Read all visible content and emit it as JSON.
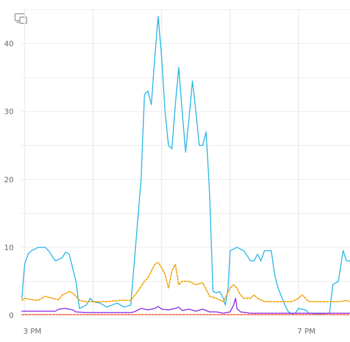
{
  "chart_data": {
    "type": "line",
    "title": "",
    "xlabel": "",
    "ylabel": "",
    "x_tick_labels": [
      {
        "x": 15.0,
        "label": "3 PM"
      },
      {
        "x": 19.0,
        "label": "7 PM"
      }
    ],
    "xlim": [
      14.95,
      19.75
    ],
    "y_ticks": [
      0,
      10,
      20,
      30,
      40
    ],
    "ylim": [
      0,
      45
    ],
    "grid": true,
    "legend": "none",
    "series": [
      {
        "color": "#29b6e6",
        "style": "solid",
        "points": [
          [
            14.96,
            2.5
          ],
          [
            15.0,
            7.5
          ],
          [
            15.05,
            9.0
          ],
          [
            15.1,
            9.5
          ],
          [
            15.2,
            10.0
          ],
          [
            15.3,
            10.0
          ],
          [
            15.35,
            9.5
          ],
          [
            15.45,
            8.0
          ],
          [
            15.55,
            8.5
          ],
          [
            15.6,
            9.3
          ],
          [
            15.65,
            9.0
          ],
          [
            15.75,
            5.0
          ],
          [
            15.8,
            1.0
          ],
          [
            15.9,
            1.5
          ],
          [
            15.96,
            2.5
          ],
          [
            16.0,
            2.0
          ],
          [
            16.1,
            1.8
          ],
          [
            16.2,
            1.2
          ],
          [
            16.35,
            1.8
          ],
          [
            16.45,
            1.2
          ],
          [
            16.55,
            1.5
          ],
          [
            16.7,
            20.0
          ],
          [
            16.75,
            32.5
          ],
          [
            16.8,
            33.0
          ],
          [
            16.85,
            31.0
          ],
          [
            16.9,
            38.0
          ],
          [
            16.95,
            44.0
          ],
          [
            17.0,
            38.0
          ],
          [
            17.05,
            30.0
          ],
          [
            17.1,
            25.0
          ],
          [
            17.15,
            24.5
          ],
          [
            17.2,
            31.0
          ],
          [
            17.25,
            36.5
          ],
          [
            17.3,
            30.0
          ],
          [
            17.35,
            24.0
          ],
          [
            17.4,
            29.0
          ],
          [
            17.45,
            34.5
          ],
          [
            17.5,
            30.0
          ],
          [
            17.55,
            25.0
          ],
          [
            17.6,
            25.0
          ],
          [
            17.65,
            27.0
          ],
          [
            17.7,
            18.0
          ],
          [
            17.75,
            3.5
          ],
          [
            17.8,
            3.3
          ],
          [
            17.85,
            3.5
          ],
          [
            17.9,
            2.5
          ],
          [
            17.93,
            1.5
          ],
          [
            17.97,
            4.0
          ],
          [
            18.0,
            9.5
          ],
          [
            18.1,
            10.0
          ],
          [
            18.2,
            9.5
          ],
          [
            18.3,
            8.0
          ],
          [
            18.35,
            8.0
          ],
          [
            18.4,
            9.0
          ],
          [
            18.45,
            8.0
          ],
          [
            18.5,
            9.5
          ],
          [
            18.6,
            9.5
          ],
          [
            18.65,
            6.0
          ],
          [
            18.7,
            4.0
          ],
          [
            18.8,
            1.5
          ],
          [
            18.85,
            0.5
          ],
          [
            18.9,
            0.2
          ],
          [
            18.95,
            0.3
          ],
          [
            19.0,
            1.0
          ],
          [
            19.1,
            0.8
          ],
          [
            19.15,
            0.3
          ],
          [
            19.3,
            0.2
          ],
          [
            19.45,
            0.3
          ],
          [
            19.5,
            4.5
          ],
          [
            19.58,
            5.0
          ],
          [
            19.65,
            9.5
          ],
          [
            19.7,
            8.0
          ],
          [
            19.75,
            8.0
          ]
        ]
      },
      {
        "color": "#f0a000",
        "style": "dashed",
        "points": [
          [
            14.96,
            2.2
          ],
          [
            15.0,
            2.5
          ],
          [
            15.1,
            2.3
          ],
          [
            15.2,
            2.2
          ],
          [
            15.3,
            2.8
          ],
          [
            15.4,
            2.5
          ],
          [
            15.5,
            2.3
          ],
          [
            15.55,
            3.0
          ],
          [
            15.6,
            3.2
          ],
          [
            15.65,
            3.5
          ],
          [
            15.7,
            3.3
          ],
          [
            15.75,
            2.8
          ],
          [
            15.8,
            2.2
          ],
          [
            15.9,
            2.0
          ],
          [
            16.0,
            2.0
          ],
          [
            16.2,
            2.0
          ],
          [
            16.4,
            2.2
          ],
          [
            16.55,
            2.2
          ],
          [
            16.65,
            3.5
          ],
          [
            16.75,
            5.0
          ],
          [
            16.8,
            5.5
          ],
          [
            16.85,
            6.5
          ],
          [
            16.9,
            7.5
          ],
          [
            16.95,
            7.8
          ],
          [
            17.0,
            7.0
          ],
          [
            17.05,
            6.0
          ],
          [
            17.1,
            4.0
          ],
          [
            17.15,
            6.5
          ],
          [
            17.2,
            7.5
          ],
          [
            17.25,
            4.5
          ],
          [
            17.3,
            5.0
          ],
          [
            17.4,
            5.0
          ],
          [
            17.5,
            4.5
          ],
          [
            17.6,
            4.8
          ],
          [
            17.7,
            2.8
          ],
          [
            17.8,
            2.5
          ],
          [
            17.9,
            2.0
          ],
          [
            18.0,
            4.0
          ],
          [
            18.05,
            4.5
          ],
          [
            18.1,
            4.0
          ],
          [
            18.15,
            3.0
          ],
          [
            18.2,
            2.5
          ],
          [
            18.3,
            2.5
          ],
          [
            18.35,
            3.0
          ],
          [
            18.4,
            2.5
          ],
          [
            18.5,
            2.0
          ],
          [
            18.65,
            2.0
          ],
          [
            18.8,
            2.0
          ],
          [
            18.9,
            2.0
          ],
          [
            19.0,
            2.5
          ],
          [
            19.05,
            3.0
          ],
          [
            19.1,
            2.5
          ],
          [
            19.15,
            2.0
          ],
          [
            19.3,
            2.0
          ],
          [
            19.5,
            2.0
          ],
          [
            19.6,
            2.0
          ],
          [
            19.7,
            2.2
          ],
          [
            19.75,
            2.0
          ]
        ]
      },
      {
        "color": "#8a2be2",
        "style": "solid",
        "points": [
          [
            14.96,
            0.6
          ],
          [
            15.2,
            0.6
          ],
          [
            15.45,
            0.6
          ],
          [
            15.5,
            0.9
          ],
          [
            15.6,
            1.0
          ],
          [
            15.7,
            0.8
          ],
          [
            15.75,
            0.5
          ],
          [
            15.9,
            0.4
          ],
          [
            16.1,
            0.4
          ],
          [
            16.3,
            0.4
          ],
          [
            16.55,
            0.4
          ],
          [
            16.6,
            0.5
          ],
          [
            16.7,
            1.0
          ],
          [
            16.8,
            0.8
          ],
          [
            16.9,
            1.0
          ],
          [
            16.95,
            1.3
          ],
          [
            17.0,
            0.9
          ],
          [
            17.1,
            0.8
          ],
          [
            17.2,
            1.0
          ],
          [
            17.25,
            1.2
          ],
          [
            17.3,
            0.7
          ],
          [
            17.35,
            0.8
          ],
          [
            17.4,
            0.9
          ],
          [
            17.5,
            0.6
          ],
          [
            17.6,
            0.9
          ],
          [
            17.7,
            0.5
          ],
          [
            17.8,
            0.5
          ],
          [
            17.9,
            0.3
          ],
          [
            18.0,
            0.5
          ],
          [
            18.05,
            1.5
          ],
          [
            18.08,
            2.5
          ],
          [
            18.1,
            1.0
          ],
          [
            18.15,
            0.5
          ],
          [
            18.3,
            0.3
          ],
          [
            18.5,
            0.3
          ],
          [
            18.7,
            0.3
          ],
          [
            18.9,
            0.3
          ],
          [
            19.1,
            0.3
          ],
          [
            19.3,
            0.3
          ],
          [
            19.5,
            0.3
          ],
          [
            19.75,
            0.3
          ]
        ]
      },
      {
        "color": "#ff5a36",
        "style": "dashed",
        "points": [
          [
            14.96,
            0.1
          ],
          [
            15.5,
            0.1
          ],
          [
            16.0,
            0.1
          ],
          [
            16.5,
            0.1
          ],
          [
            17.0,
            0.1
          ],
          [
            17.5,
            0.1
          ],
          [
            18.0,
            0.1
          ],
          [
            18.5,
            0.1
          ],
          [
            19.0,
            0.1
          ],
          [
            19.5,
            0.1
          ],
          [
            19.75,
            0.1
          ]
        ]
      }
    ]
  }
}
